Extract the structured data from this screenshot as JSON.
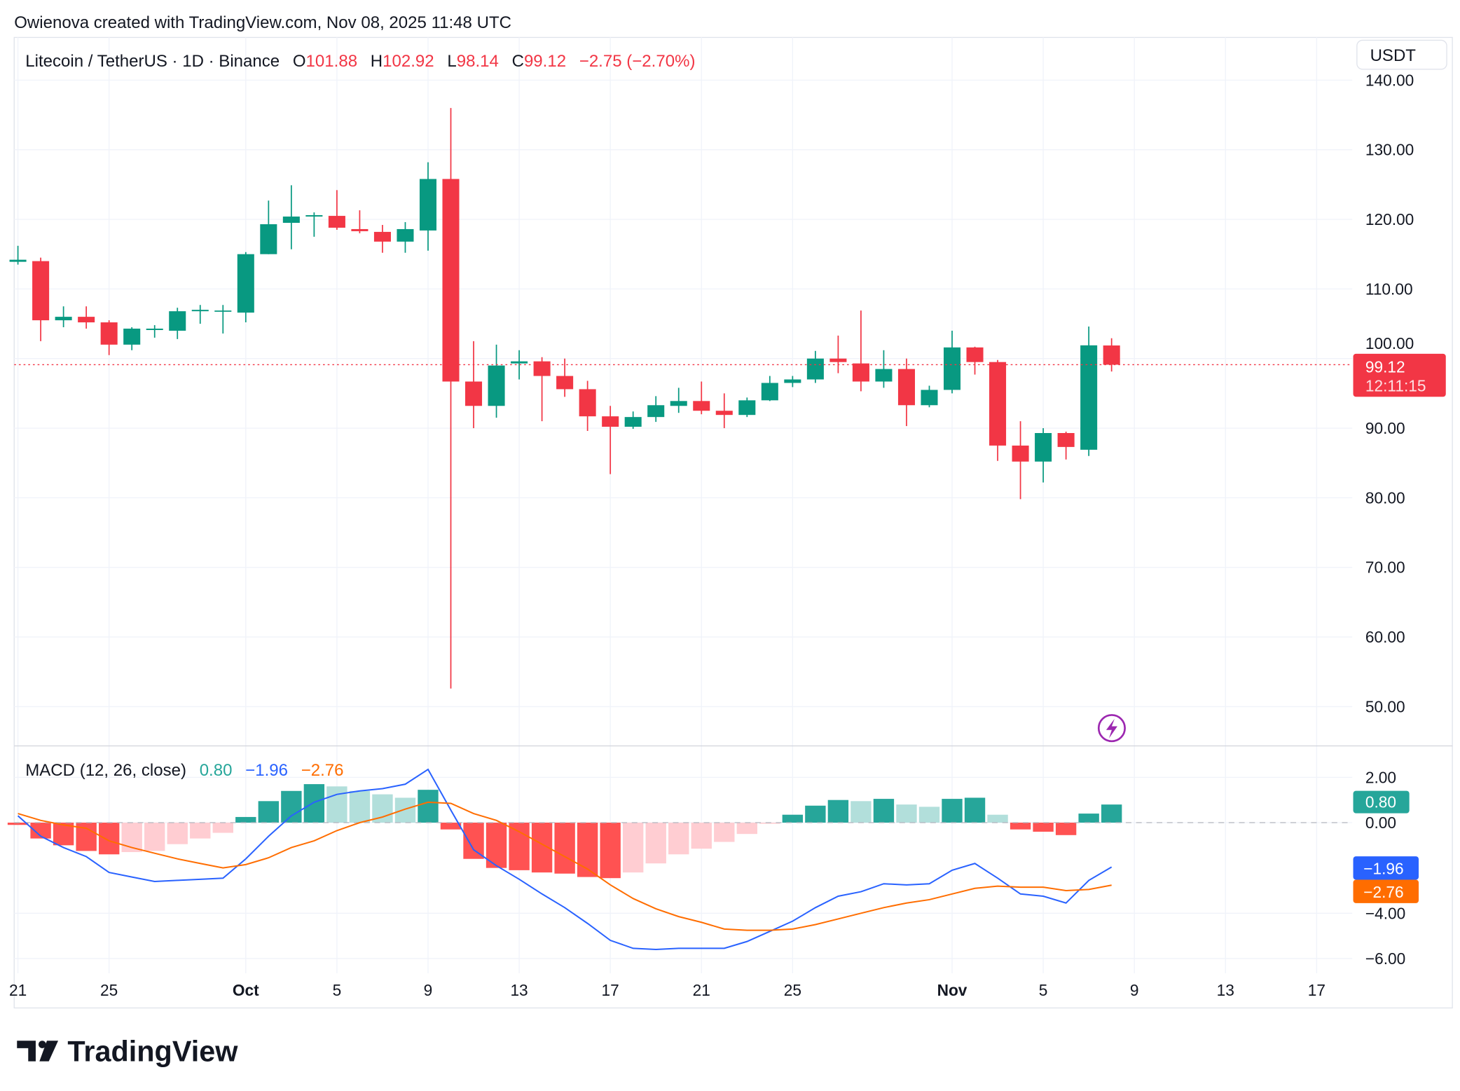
{
  "attribution": "Owienova created with TradingView.com, Nov 08, 2025 11:48 UTC",
  "legend": {
    "symbol": "Litecoin / TetherUS · 1D · Binance",
    "o_label": "O",
    "o_value": "101.88",
    "h_label": "H",
    "h_value": "102.92",
    "l_label": "L",
    "l_value": "98.14",
    "c_label": "C",
    "c_value": "99.12",
    "change": "−2.75 (−2.70%)"
  },
  "currency_button": "USDT",
  "price_label": {
    "price": "99.12",
    "countdown": "12:11:15"
  },
  "macd_legend": {
    "title": "MACD (12, 26, close)",
    "hist": "0.80",
    "macd": "−1.96",
    "signal": "−2.76"
  },
  "macd_labels": {
    "hist": "0.80",
    "macd": "−1.96",
    "signal": "−2.76"
  },
  "logo_text": "TradingView",
  "colors": {
    "up": "#089981",
    "down": "#f23645",
    "macd": "#2962ff",
    "signal": "#ff6d00",
    "hist_up_strong": "#26a69a",
    "hist_up_weak": "#b2dfdb",
    "hist_down_strong": "#ff5252",
    "hist_down_weak": "#ffcdd2",
    "alert": "#9c27b0"
  },
  "icons": {
    "alert": "lightning-icon",
    "logo": "tradingview-logo-icon"
  },
  "chart_data": [
    {
      "type": "candlestick",
      "title": "Litecoin / TetherUS · 1D · Binance",
      "ylim": [
        45,
        143
      ],
      "y_ticks": [
        "140.00",
        "130.00",
        "120.00",
        "110.00",
        "100.00",
        "90.00",
        "80.00",
        "70.00",
        "60.00",
        "50.00"
      ],
      "y_tick_values": [
        140,
        130,
        120,
        110,
        100,
        90,
        80,
        70,
        60,
        50
      ],
      "x_ticks": [
        {
          "label": "21",
          "date": "2025-09-21"
        },
        {
          "label": "25",
          "date": "2025-09-25"
        },
        {
          "label": "Oct",
          "date": "2025-10-01"
        },
        {
          "label": "5",
          "date": "2025-10-05"
        },
        {
          "label": "9",
          "date": "2025-10-09"
        },
        {
          "label": "13",
          "date": "2025-10-13"
        },
        {
          "label": "17",
          "date": "2025-10-17"
        },
        {
          "label": "21",
          "date": "2025-10-21"
        },
        {
          "label": "25",
          "date": "2025-10-25"
        },
        {
          "label": "Nov",
          "date": "2025-11-01"
        },
        {
          "label": "5",
          "date": "2025-11-05"
        },
        {
          "label": "9",
          "date": "2025-11-09"
        },
        {
          "label": "13",
          "date": "2025-11-13"
        },
        {
          "label": "17",
          "date": "2025-11-17"
        }
      ],
      "grid": true,
      "start_date": "2025-09-21",
      "candles": [
        [
          113.9,
          116.2,
          113.5,
          114.2
        ],
        [
          114,
          114.5,
          102.5,
          105.5
        ],
        [
          105.5,
          107.5,
          104.5,
          106
        ],
        [
          106,
          107.5,
          104.3,
          105.2
        ],
        [
          105.2,
          105.5,
          100.5,
          102
        ],
        [
          102,
          104.5,
          101.2,
          104.3
        ],
        [
          104.1,
          104.8,
          103,
          104.3
        ],
        [
          104,
          107.3,
          102.8,
          106.8
        ],
        [
          106.8,
          107.7,
          105,
          107
        ],
        [
          106.8,
          107.7,
          103.6,
          106.9
        ],
        [
          106.6,
          115.3,
          105.2,
          115
        ],
        [
          115,
          122.7,
          115,
          119.3
        ],
        [
          119.5,
          124.9,
          115.7,
          120.4
        ],
        [
          120.4,
          121,
          117.5,
          120.6
        ],
        [
          120.5,
          124.2,
          118.5,
          118.8
        ],
        [
          118.6,
          121.3,
          118,
          118.3
        ],
        [
          118.2,
          119.2,
          115.2,
          116.8
        ],
        [
          116.8,
          119.6,
          115.2,
          118.6
        ],
        [
          118.4,
          128.2,
          115.5,
          125.8
        ],
        [
          125.8,
          136,
          52.6,
          96.7
        ],
        [
          96.7,
          102.5,
          90,
          93.2
        ],
        [
          93.2,
          102,
          91.5,
          99
        ],
        [
          99.3,
          101.2,
          97,
          99.6
        ],
        [
          99.6,
          100.2,
          91,
          97.5
        ],
        [
          97.5,
          100,
          94.5,
          95.6
        ],
        [
          95.6,
          96.8,
          89.6,
          91.7
        ],
        [
          91.7,
          93.2,
          83.4,
          90.2
        ],
        [
          90.2,
          92.4,
          89.9,
          91.6
        ],
        [
          91.6,
          94.6,
          90.9,
          93.3
        ],
        [
          93.2,
          95.8,
          92.2,
          93.9
        ],
        [
          93.9,
          96.7,
          92,
          92.5
        ],
        [
          92.5,
          95,
          90,
          91.9
        ],
        [
          91.9,
          94.4,
          91.6,
          94
        ],
        [
          94,
          97.5,
          93.9,
          96.5
        ],
        [
          96.5,
          97.5,
          95.9,
          97
        ],
        [
          97,
          101.1,
          96.5,
          100
        ],
        [
          100,
          103.3,
          97.9,
          99.5
        ],
        [
          99.3,
          106.9,
          95.3,
          96.7
        ],
        [
          96.7,
          101.2,
          95.8,
          98.5
        ],
        [
          98.5,
          100,
          90.3,
          93.3
        ],
        [
          93.3,
          96.1,
          93,
          95.5
        ],
        [
          95.5,
          104,
          95,
          101.6
        ],
        [
          101.6,
          101.7,
          97.7,
          99.5
        ],
        [
          99.5,
          99.8,
          85.3,
          87.5
        ],
        [
          87.5,
          91,
          79.8,
          85.2
        ],
        [
          85.2,
          90,
          82.2,
          89.3
        ],
        [
          89.3,
          89.5,
          85.5,
          87.3
        ],
        [
          86.9,
          104.6,
          86,
          101.9
        ],
        [
          101.88,
          102.92,
          98.14,
          99.12
        ]
      ],
      "candle_format": [
        "open",
        "high",
        "low",
        "close"
      ],
      "last_price": 99.12
    },
    {
      "type": "macd",
      "title": "MACD (12, 26, close)",
      "ylim": [
        -7,
        3
      ],
      "y_ticks": [
        "2.00",
        "0.00",
        "−4.00",
        "−6.00"
      ],
      "y_tick_values": [
        2,
        0,
        -4,
        -6
      ],
      "start_date": "2025-09-21",
      "series": [
        {
          "name": "histogram",
          "values": [
            -0.1,
            -0.7,
            -1.0,
            -1.25,
            -1.4,
            -1.3,
            -1.25,
            -0.95,
            -0.7,
            -0.45,
            0.25,
            0.95,
            1.4,
            1.7,
            1.6,
            1.4,
            1.25,
            1.1,
            1.45,
            -0.3,
            -1.6,
            -2.0,
            -2.1,
            -2.2,
            -2.25,
            -2.4,
            -2.45,
            -2.2,
            -1.8,
            -1.4,
            -1.15,
            -0.85,
            -0.5,
            -0.05,
            0.35,
            0.75,
            1.0,
            0.95,
            1.05,
            0.8,
            0.7,
            1.05,
            1.1,
            0.35,
            -0.3,
            -0.4,
            -0.55,
            0.4,
            0.8
          ]
        },
        {
          "name": "macd",
          "values": [
            0.3,
            -0.6,
            -1.1,
            -1.5,
            -2.2,
            -2.4,
            -2.6,
            -2.55,
            -2.5,
            -2.45,
            -1.6,
            -0.6,
            0.3,
            0.9,
            1.25,
            1.4,
            1.5,
            1.7,
            2.35,
            0.55,
            -1.2,
            -1.9,
            -2.5,
            -3.15,
            -3.75,
            -4.45,
            -5.2,
            -5.55,
            -5.6,
            -5.55,
            -5.55,
            -5.55,
            -5.25,
            -4.8,
            -4.35,
            -3.75,
            -3.25,
            -3.05,
            -2.7,
            -2.75,
            -2.7,
            -2.1,
            -1.8,
            -2.45,
            -3.15,
            -3.25,
            -3.55,
            -2.55,
            -1.96
          ]
        },
        {
          "name": "signal",
          "values": [
            0.4,
            0.1,
            -0.1,
            -0.25,
            -0.8,
            -1.1,
            -1.35,
            -1.6,
            -1.8,
            -2.0,
            -1.85,
            -1.55,
            -1.1,
            -0.8,
            -0.35,
            0,
            0.25,
            0.6,
            0.9,
            0.85,
            0.4,
            0.1,
            -0.4,
            -0.95,
            -1.5,
            -2.05,
            -2.75,
            -3.35,
            -3.8,
            -4.15,
            -4.4,
            -4.7,
            -4.75,
            -4.75,
            -4.7,
            -4.5,
            -4.25,
            -4.0,
            -3.75,
            -3.55,
            -3.4,
            -3.15,
            -2.9,
            -2.8,
            -2.85,
            -2.85,
            -3.0,
            -2.95,
            -2.76
          ]
        }
      ]
    }
  ]
}
